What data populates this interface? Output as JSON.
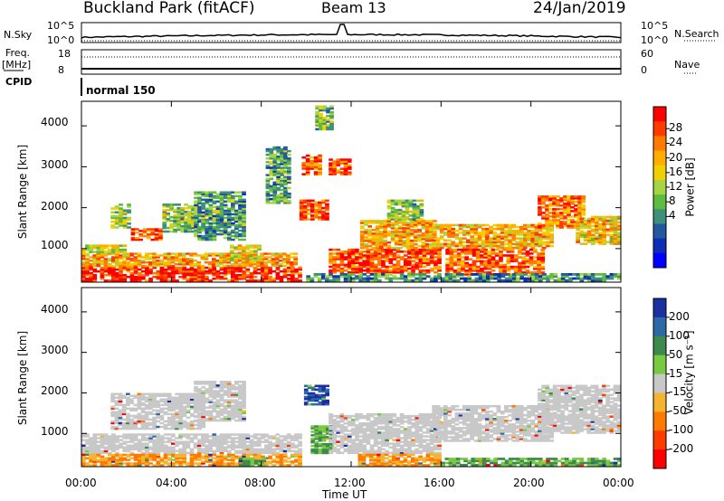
{
  "header": {
    "station": "Buckland Park (fitACF)",
    "beam": "Beam 13",
    "date": "24/Jan/2019"
  },
  "top_panels": {
    "nsky_label": "N.Sky",
    "nsearch_label": "N.Search",
    "noise_ticks": [
      "10^5",
      "10^0"
    ],
    "freq_label": "Freq.",
    "freq_unit": "[MHz]",
    "freq_ticks": [
      "18",
      "8"
    ],
    "nave_label": "Nave",
    "nave_ticks": [
      "60",
      "0"
    ],
    "cpid_label": "CPID",
    "cpid_value": "normal 150"
  },
  "chart_data": [
    {
      "type": "heatmap",
      "name": "power",
      "ylabel": "Slant Range [km]",
      "yticks": [
        1000,
        2000,
        3000,
        4000
      ],
      "ylim": [
        180,
        4600
      ],
      "xlim": [
        0,
        24
      ],
      "colorbar": {
        "label": "Power [dB]",
        "ticks": [
          "28",
          "24",
          "20",
          "16",
          "12",
          "8",
          "4"
        ],
        "colors": [
          "#ff0000",
          "#ff3a00",
          "#ff7a00",
          "#ffae00",
          "#f0d000",
          "#a6d442",
          "#5dbb40",
          "#3f8f7a",
          "#24599f",
          "#0e2eb6",
          "#0000ff"
        ]
      },
      "bands": [
        {
          "t0": 0.0,
          "t1": 9.8,
          "r0": 200,
          "r1": 560,
          "level": 0.95
        },
        {
          "t0": 0.0,
          "t1": 9.6,
          "r0": 560,
          "r1": 900,
          "level": 0.7
        },
        {
          "t0": 0.0,
          "t1": 2.0,
          "r0": 900,
          "r1": 1100,
          "level": 0.55
        },
        {
          "t0": 1.3,
          "t1": 2.2,
          "r0": 1500,
          "r1": 2100,
          "level": 0.5
        },
        {
          "t0": 2.2,
          "t1": 3.6,
          "r0": 1200,
          "r1": 1500,
          "level": 0.85
        },
        {
          "t0": 3.6,
          "t1": 5.2,
          "r0": 1400,
          "r1": 2100,
          "level": 0.45
        },
        {
          "t0": 5.0,
          "t1": 7.3,
          "r0": 1200,
          "r1": 2400,
          "level": 0.35
        },
        {
          "t0": 6.6,
          "t1": 8.0,
          "r0": 700,
          "r1": 1100,
          "level": 0.6
        },
        {
          "t0": 8.2,
          "t1": 9.3,
          "r0": 2100,
          "r1": 3500,
          "level": 0.35
        },
        {
          "t0": 9.7,
          "t1": 11.0,
          "r0": 1700,
          "r1": 2200,
          "level": 0.9
        },
        {
          "t0": 9.8,
          "t1": 10.7,
          "r0": 2800,
          "r1": 3300,
          "level": 0.85
        },
        {
          "t0": 11.0,
          "t1": 12.0,
          "r0": 2800,
          "r1": 3200,
          "level": 0.9
        },
        {
          "t0": 10.4,
          "t1": 11.2,
          "r0": 3900,
          "r1": 4500,
          "level": 0.4
        },
        {
          "t0": 11.0,
          "t1": 16.0,
          "r0": 400,
          "r1": 1000,
          "level": 0.9
        },
        {
          "t0": 12.4,
          "t1": 15.8,
          "r0": 1000,
          "r1": 1700,
          "level": 0.7
        },
        {
          "t0": 13.6,
          "t1": 15.2,
          "r0": 1700,
          "r1": 2200,
          "level": 0.45
        },
        {
          "t0": 15.6,
          "t1": 21.0,
          "r0": 1000,
          "r1": 1600,
          "level": 0.7
        },
        {
          "t0": 16.2,
          "t1": 20.6,
          "r0": 350,
          "r1": 1000,
          "level": 0.85
        },
        {
          "t0": 20.3,
          "t1": 22.4,
          "r0": 1500,
          "r1": 2300,
          "level": 0.8
        },
        {
          "t0": 22.0,
          "t1": 24.0,
          "r0": 1100,
          "r1": 1800,
          "level": 0.65
        },
        {
          "t0": 10.0,
          "t1": 24.0,
          "r0": 200,
          "r1": 400,
          "level": 0.3
        }
      ]
    },
    {
      "type": "heatmap",
      "name": "velocity",
      "ylabel": "Slant Range [km]",
      "yticks": [
        1000,
        2000,
        3000,
        4000
      ],
      "ylim": [
        180,
        4600
      ],
      "xlabel": "Time UT",
      "xticks": [
        "00:00",
        "04:00",
        "08:00",
        "12:00",
        "16:00",
        "20:00",
        "00:00"
      ],
      "xlim": [
        0,
        24
      ],
      "colorbar": {
        "label": "Velocity [m s⁻¹]",
        "ticks": [
          "200",
          "100",
          "50",
          "15",
          "-15",
          "-50",
          "-100",
          "-200"
        ],
        "colors": [
          "#1a2fa0",
          "#2e68a6",
          "#3e8a4e",
          "#79c942",
          "#c8c8c8",
          "#f4b431",
          "#ff7a00",
          "#ff3c00",
          "#ff0000"
        ]
      },
      "bands": [
        {
          "t0": 0.0,
          "t1": 9.8,
          "r0": 500,
          "r1": 1000,
          "level": "gray"
        },
        {
          "t0": 0.0,
          "t1": 9.8,
          "r0": 200,
          "r1": 500,
          "level": "orange"
        },
        {
          "t0": 1.3,
          "t1": 5.5,
          "r0": 1100,
          "r1": 2000,
          "level": "gray"
        },
        {
          "t0": 5.0,
          "t1": 7.3,
          "r0": 1300,
          "r1": 2300,
          "level": "gray"
        },
        {
          "t0": 7.0,
          "t1": 8.2,
          "r0": 200,
          "r1": 400,
          "level": "green"
        },
        {
          "t0": 9.9,
          "t1": 11.0,
          "r0": 1700,
          "r1": 2200,
          "level": "blue"
        },
        {
          "t0": 10.2,
          "t1": 11.2,
          "r0": 500,
          "r1": 1200,
          "level": "green"
        },
        {
          "t0": 11.0,
          "t1": 16.0,
          "r0": 500,
          "r1": 1500,
          "level": "gray"
        },
        {
          "t0": 12.3,
          "t1": 16.0,
          "r0": 200,
          "r1": 500,
          "level": "orange"
        },
        {
          "t0": 15.6,
          "t1": 21.0,
          "r0": 800,
          "r1": 1700,
          "level": "gray"
        },
        {
          "t0": 16.0,
          "t1": 24.0,
          "r0": 200,
          "r1": 400,
          "level": "green"
        },
        {
          "t0": 20.3,
          "t1": 24.0,
          "r0": 1000,
          "r1": 2200,
          "level": "gray"
        }
      ]
    }
  ]
}
